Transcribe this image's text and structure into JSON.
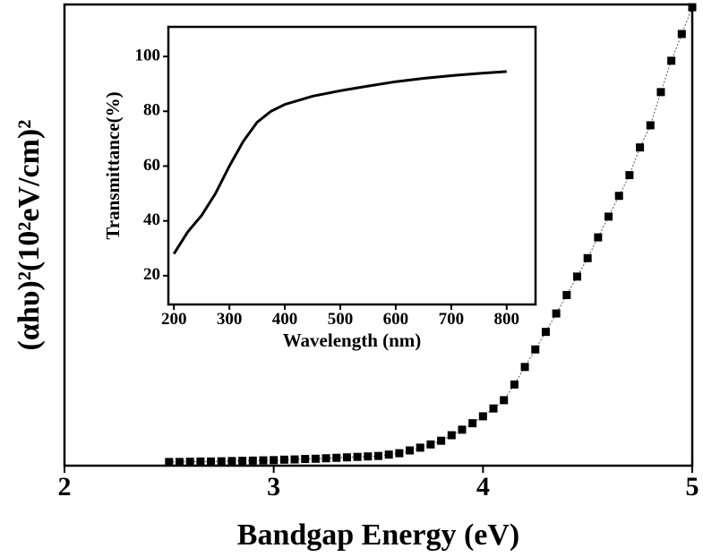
{
  "chart_data": [
    {
      "type": "scatter",
      "x_label": "Bandgap Energy (eV)",
      "y_label": "(αhυ)²(10²eV/cm)²",
      "x": [
        2.5,
        2.55,
        2.6,
        2.65,
        2.7,
        2.75,
        2.8,
        2.85,
        2.9,
        2.95,
        3.0,
        3.05,
        3.1,
        3.15,
        3.2,
        3.25,
        3.3,
        3.35,
        3.4,
        3.45,
        3.5,
        3.55,
        3.6,
        3.65,
        3.7,
        3.75,
        3.8,
        3.85,
        3.9,
        3.95,
        4.0,
        4.05,
        4.1,
        4.15,
        4.2,
        4.25,
        4.3,
        4.35,
        4.4,
        4.45,
        4.5,
        4.55,
        4.6,
        4.65,
        4.7,
        4.75,
        4.8,
        4.85,
        4.9,
        4.95,
        5.0
      ],
      "values": [
        0.8,
        0.8,
        0.85,
        0.9,
        0.9,
        0.95,
        1.0,
        1.05,
        1.1,
        1.15,
        1.2,
        1.3,
        1.35,
        1.45,
        1.5,
        1.6,
        1.7,
        1.8,
        1.9,
        2.0,
        2.1,
        2.4,
        2.7,
        3.3,
        3.9,
        4.6,
        5.4,
        6.6,
        7.8,
        9.2,
        10.7,
        12.4,
        14.2,
        17.6,
        21.4,
        25.2,
        29,
        33,
        37,
        41,
        45,
        49.5,
        54,
        58.5,
        63,
        69,
        73.8,
        81,
        87.8,
        93.6,
        99.4
      ],
      "color": "#000000",
      "xlim": [
        2,
        5
      ],
      "xticks": [
        2,
        3,
        4,
        5
      ],
      "ylim": [
        0,
        100
      ]
    },
    {
      "type": "line",
      "x_label": "Wavelength (nm)",
      "y_label": "Transmittance(%)",
      "x": [
        200,
        225,
        250,
        275,
        300,
        325,
        350,
        375,
        400,
        450,
        500,
        550,
        600,
        650,
        700,
        750,
        800
      ],
      "values": [
        28,
        36,
        42,
        50,
        60,
        69,
        76,
        80,
        82.5,
        85.5,
        87.5,
        89.2,
        90.8,
        92,
        93,
        93.8,
        94.5
      ],
      "color": "#000000",
      "xlim": [
        190,
        852
      ],
      "xticks": [
        200,
        300,
        400,
        500,
        600,
        700,
        800
      ],
      "ylim": [
        9.5,
        110.8
      ],
      "yticks": [
        20,
        40,
        60,
        80,
        100
      ]
    }
  ]
}
